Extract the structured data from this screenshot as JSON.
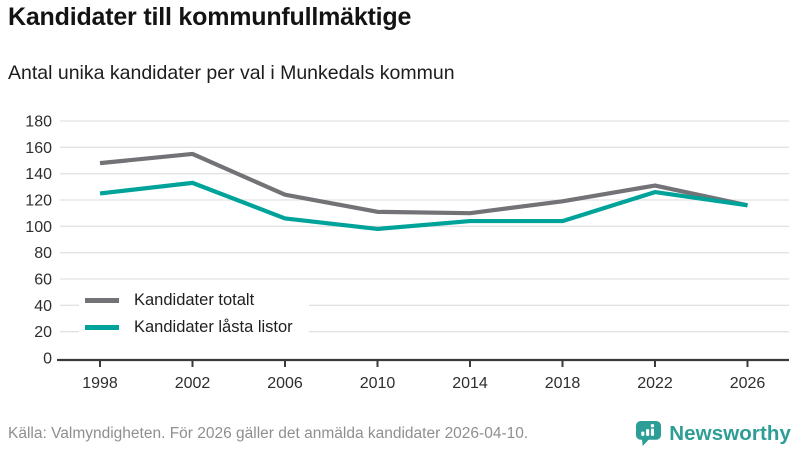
{
  "header": {
    "title": "Kandidater till kommunfullmäktige",
    "subtitle": "Antal unika kandidater per val i Munkedals kommun"
  },
  "chart_data": {
    "type": "line",
    "title": "Kandidater till kommunfullmäktige",
    "subtitle": "Antal unika kandidater per val i Munkedals kommun",
    "categories": [
      "1998",
      "2002",
      "2006",
      "2010",
      "2014",
      "2018",
      "2022",
      "2026"
    ],
    "series": [
      {
        "name": "Kandidater totalt",
        "color": "#737377",
        "values": [
          148,
          155,
          124,
          111,
          110,
          119,
          131,
          116
        ]
      },
      {
        "name": "Kandidater låsta listor",
        "color": "#00a39a",
        "values": [
          125,
          133,
          106,
          98,
          104,
          104,
          126,
          116
        ]
      }
    ],
    "xlabel": "",
    "ylabel": "",
    "ylim": [
      0,
      180
    ],
    "yticks": [
      0,
      20,
      40,
      60,
      80,
      100,
      120,
      140,
      160,
      180
    ],
    "grid": true,
    "legend_position": "inside-bottom-left"
  },
  "footer": {
    "source": "Källa: Valmyndigheten. För 2026 gäller det anmälda kandidater 2026-04-10.",
    "brand": "Newsworthy"
  },
  "colors": {
    "series_total": "#737377",
    "series_locked": "#00a39a",
    "brand_teal": "#2d9e95",
    "gridline": "#e2e2e2",
    "axis": "#3b3b3b",
    "tick_label": "#2e2e2e"
  }
}
